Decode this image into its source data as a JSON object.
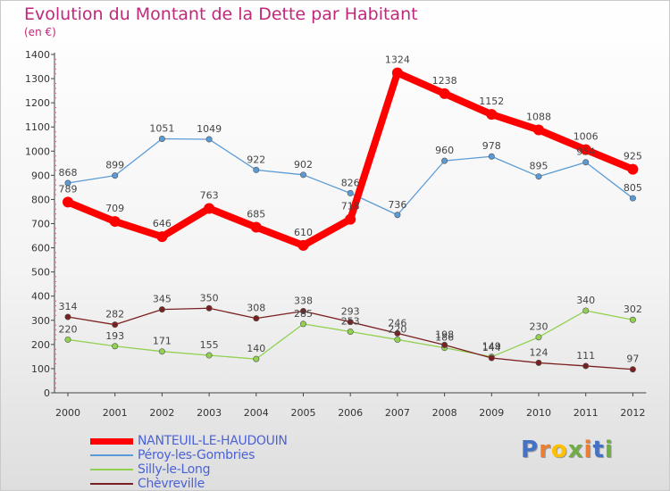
{
  "chart_data": {
    "type": "line",
    "title": "Evolution du Montant de la Dette par Habitant",
    "subtitle": "(en €)",
    "x": [
      "2000",
      "2001",
      "2002",
      "2003",
      "2004",
      "2005",
      "2006",
      "2007",
      "2008",
      "2009",
      "2010",
      "2011",
      "2012"
    ],
    "ylim": [
      0,
      1400
    ],
    "yticks": [
      "0",
      "100",
      "200",
      "300",
      "400",
      "500",
      "600",
      "700",
      "800",
      "900",
      "1000",
      "1100",
      "1200",
      "1300",
      "1400"
    ],
    "grid": false,
    "legend_position": "bottom-left",
    "series": [
      {
        "name": "NANTEUIL-LE-HAUDOUIN",
        "color": "#ff0000",
        "values": [
          789,
          709,
          646,
          763,
          685,
          610,
          718,
          1324,
          1238,
          1152,
          1088,
          1006,
          925
        ],
        "labels": [
          "789",
          "709",
          "646",
          "763",
          "685",
          "610",
          "718",
          "1324",
          "1238",
          "1152",
          "1088",
          "1006",
          "925"
        ]
      },
      {
        "name": "Péroy-les-Gombries",
        "color": "#5b9bd5",
        "values": [
          868,
          899,
          1051,
          1049,
          922,
          902,
          826,
          736,
          960,
          978,
          895,
          954,
          805
        ],
        "labels": [
          "868",
          "899",
          "1051",
          "1049",
          "922",
          "902",
          "826",
          "736",
          "960",
          "978",
          "895",
          "954",
          "805"
        ]
      },
      {
        "name": "Silly-le-Long",
        "color": "#92d050",
        "values": [
          220,
          193,
          171,
          155,
          140,
          285,
          253,
          220,
          186,
          149,
          230,
          340,
          302
        ],
        "labels": [
          "220",
          "193",
          "171",
          "155",
          "140",
          "285",
          "253",
          "220",
          "186",
          "149",
          "230",
          "340",
          "302"
        ]
      },
      {
        "name": "Chèvreville",
        "color": "#7b2020",
        "values": [
          314,
          282,
          345,
          350,
          308,
          338,
          293,
          246,
          198,
          144,
          124,
          111,
          97
        ],
        "labels": [
          "314",
          "282",
          "345",
          "350",
          "308",
          "338",
          "293",
          "246",
          "198",
          "144",
          "124",
          "111",
          "97"
        ]
      }
    ]
  },
  "logo": {
    "letters": [
      "P",
      "r",
      "o",
      "x",
      "i",
      "t",
      "i"
    ],
    "colors": [
      "#4472c4",
      "#ed7d31",
      "#ffc000",
      "#70ad47",
      "#ed7d31",
      "#4472c4",
      "#70ad47"
    ]
  }
}
